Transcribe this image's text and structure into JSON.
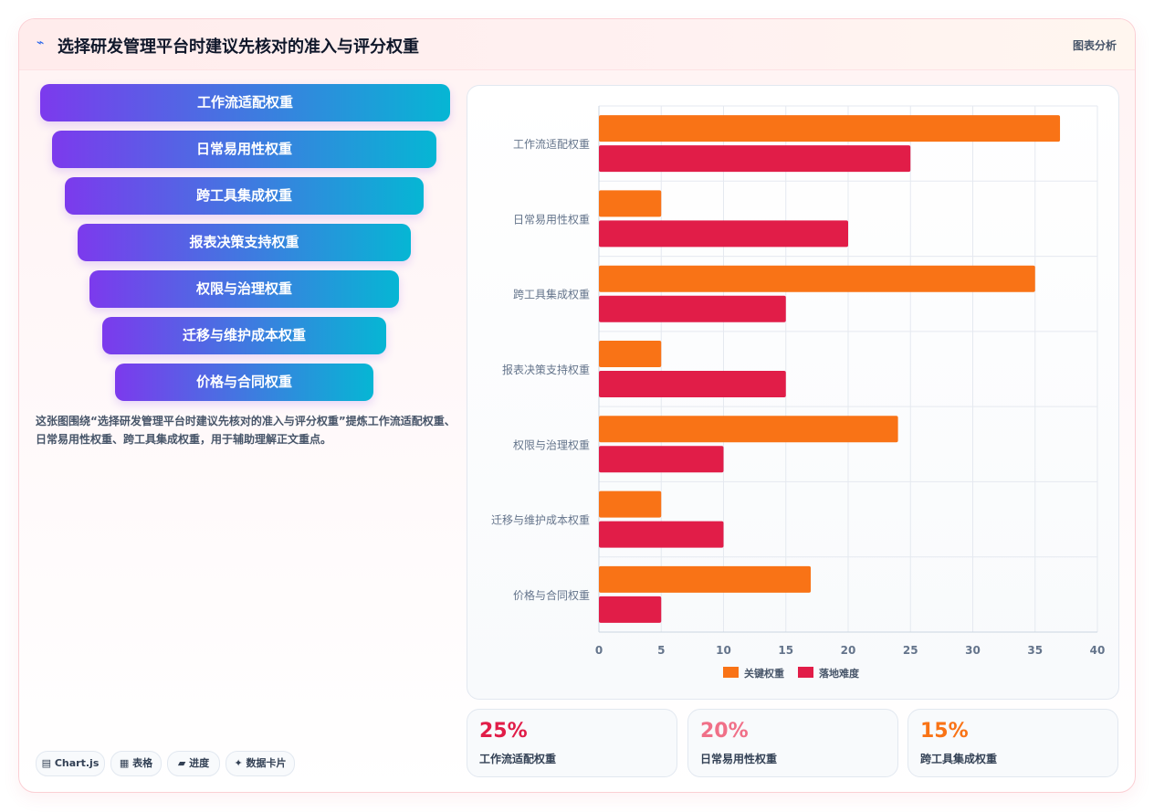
{
  "header": {
    "title_icon": "⌁",
    "title": "选择研发管理平台时建议先核对的准入与评分权重",
    "analysis_label": "图表分析"
  },
  "funnel": {
    "items": [
      {
        "label": "工作流适配权重"
      },
      {
        "label": "日常易用性权重"
      },
      {
        "label": "跨工具集成权重"
      },
      {
        "label": "报表决策支持权重"
      },
      {
        "label": "权限与治理权重"
      },
      {
        "label": "迁移与维护成本权重"
      },
      {
        "label": "价格与合同权重"
      }
    ]
  },
  "description": "这张图围绕“选择研发管理平台时建议先核对的准入与评分权重”提炼工作流适配权重、日常易用性权重、跨工具集成权重，用于辅助理解正文重点。",
  "chips": [
    {
      "icon": "chart-icon",
      "glyph": "▤",
      "label": "Chart.js"
    },
    {
      "icon": "table-icon",
      "glyph": "▦",
      "label": "表格"
    },
    {
      "icon": "progress-icon",
      "glyph": "▰",
      "label": "进度"
    },
    {
      "icon": "sparkle-icon",
      "glyph": "✦",
      "label": "数据卡片"
    }
  ],
  "stats": [
    {
      "value": "25%",
      "label": "工作流适配权重",
      "color": "#e11d48"
    },
    {
      "value": "20%",
      "label": "日常易用性权重",
      "color": "#f07088"
    },
    {
      "value": "15%",
      "label": "跨工具集成权重",
      "color": "#f97316"
    }
  ],
  "chart_data": {
    "type": "bar",
    "orientation": "horizontal",
    "categories": [
      "工作流适配权重",
      "日常易用性权重",
      "跨工具集成权重",
      "报表决策支持权重",
      "权限与治理权重",
      "迁移与维护成本权重",
      "价格与合同权重"
    ],
    "series": [
      {
        "name": "关键权重",
        "color": "#f97316",
        "values": [
          37,
          5,
          35,
          5,
          24,
          5,
          17
        ]
      },
      {
        "name": "落地难度",
        "color": "#e11d48",
        "values": [
          25,
          20,
          15,
          15,
          10,
          10,
          5
        ]
      }
    ],
    "x_ticks": [
      0,
      5,
      10,
      15,
      20,
      25,
      30,
      35,
      40
    ],
    "xlim": [
      0,
      40
    ],
    "grid": true,
    "legend_position": "bottom"
  }
}
